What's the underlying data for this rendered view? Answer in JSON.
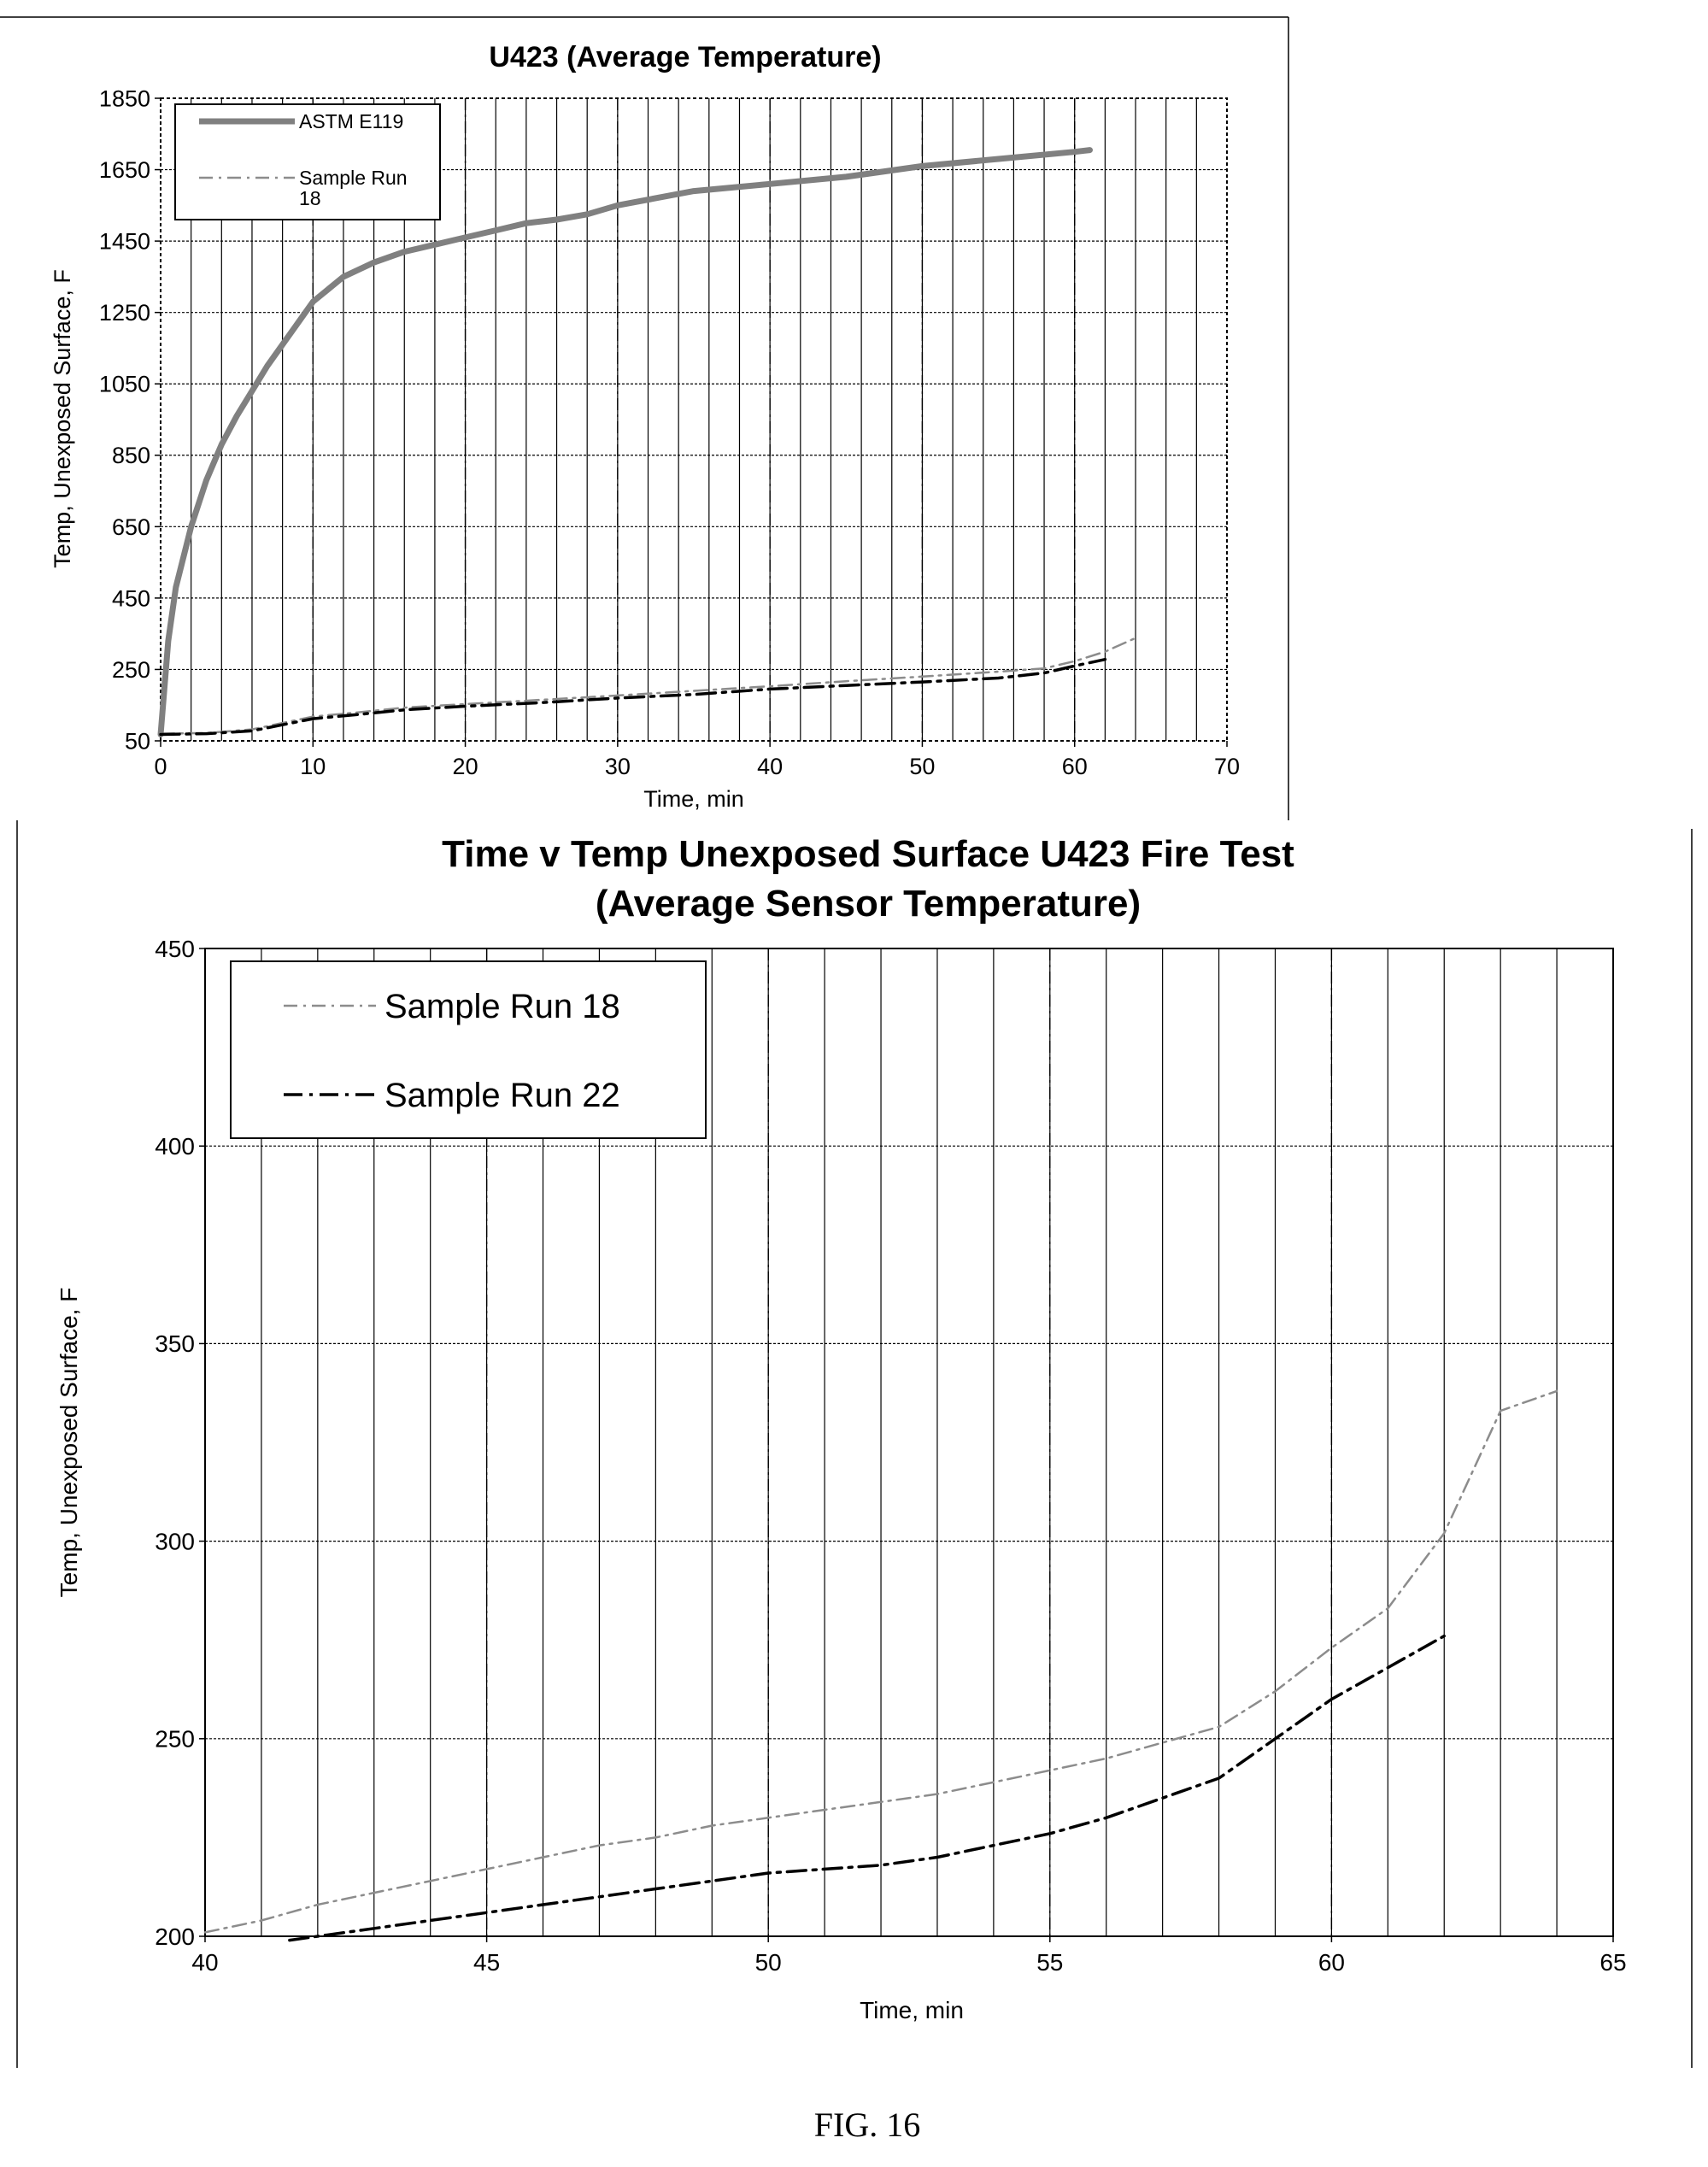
{
  "figure_caption": "FIG. 16",
  "colors": {
    "astm": "#808080",
    "run18": "#8c8c8c",
    "run22": "#000000",
    "grid": "#000000"
  },
  "chart_data": [
    {
      "type": "line",
      "title": "U423 (Average Temperature)",
      "xlabel": "Time, min",
      "ylabel": "Temp, Unexposed Surface, F",
      "xlim": [
        0,
        70
      ],
      "ylim": [
        50,
        1850
      ],
      "xticks": [
        0,
        10,
        20,
        30,
        40,
        50,
        60,
        70
      ],
      "yticks": [
        50,
        250,
        450,
        650,
        850,
        1050,
        1250,
        1450,
        1650,
        1850
      ],
      "grid": true,
      "legend_position": "top-left",
      "series": [
        {
          "name": "ASTM  E119",
          "style": "solid-thick",
          "x": [
            0,
            0.5,
            1,
            2,
            3,
            4,
            5,
            6,
            7,
            8,
            9,
            10,
            12,
            14,
            16,
            18,
            20,
            22,
            24,
            26,
            28,
            30,
            35,
            40,
            45,
            50,
            55,
            60,
            61
          ],
          "y": [
            68,
            330,
            480,
            650,
            780,
            880,
            960,
            1030,
            1100,
            1160,
            1220,
            1280,
            1350,
            1390,
            1420,
            1440,
            1460,
            1480,
            1500,
            1510,
            1525,
            1550,
            1590,
            1610,
            1630,
            1660,
            1680,
            1700,
            1705
          ]
        },
        {
          "name": "Sample Run\n18",
          "style": "dash-dot-gray",
          "x": [
            0,
            3,
            6,
            8,
            10,
            13,
            16,
            20,
            25,
            30,
            35,
            40,
            45,
            50,
            55,
            58,
            60,
            62,
            64
          ],
          "y": [
            70,
            72,
            82,
            100,
            118,
            130,
            143,
            153,
            165,
            177,
            190,
            203,
            217,
            230,
            244,
            253,
            273,
            300,
            338
          ]
        },
        {
          "name": "",
          "style": "dash-dot-dark",
          "x": [
            0,
            3,
            6,
            8,
            10,
            13,
            16,
            20,
            25,
            30,
            35,
            40,
            45,
            50,
            55,
            58,
            60,
            62
          ],
          "y": [
            68,
            70,
            78,
            95,
            112,
            124,
            137,
            147,
            157,
            170,
            180,
            195,
            205,
            215,
            226,
            240,
            260,
            278
          ]
        }
      ]
    },
    {
      "type": "line",
      "title": "Time v Temp Unexposed Surface U423 Fire Test",
      "subtitle": "(Average Sensor Temperature)",
      "xlabel": "Time, min",
      "ylabel": "Temp, Unexposed Surface, F",
      "xlim": [
        40,
        65
      ],
      "ylim": [
        200,
        450
      ],
      "xticks": [
        40,
        45,
        50,
        55,
        60,
        65
      ],
      "yticks": [
        200,
        250,
        300,
        350,
        400,
        450
      ],
      "grid": true,
      "legend_position": "top-left",
      "series": [
        {
          "name": "Sample Run 18",
          "style": "dash-dot-gray",
          "x": [
            40,
            41,
            42,
            43,
            44,
            45,
            46,
            47,
            48,
            49,
            50,
            51,
            52,
            53,
            54,
            55,
            56,
            57,
            58,
            59,
            60,
            61,
            62,
            63,
            64
          ],
          "y": [
            201,
            204,
            208,
            211,
            214,
            217,
            220,
            223,
            225,
            228,
            230,
            232,
            234,
            236,
            239,
            242,
            245,
            249,
            253,
            262,
            273,
            283,
            302,
            333,
            338
          ]
        },
        {
          "name": "Sample Run 22",
          "style": "dash-dot-dark",
          "x": [
            41.5,
            42,
            43,
            44,
            45,
            46,
            47,
            48,
            49,
            50,
            51,
            52,
            53,
            54,
            55,
            56,
            57,
            58,
            59,
            60,
            61,
            62
          ],
          "y": [
            199,
            200,
            202,
            204,
            206,
            208,
            210,
            212,
            214,
            216,
            217,
            218,
            220,
            223,
            226,
            230,
            235,
            240,
            250,
            260,
            268,
            276
          ]
        }
      ]
    }
  ]
}
